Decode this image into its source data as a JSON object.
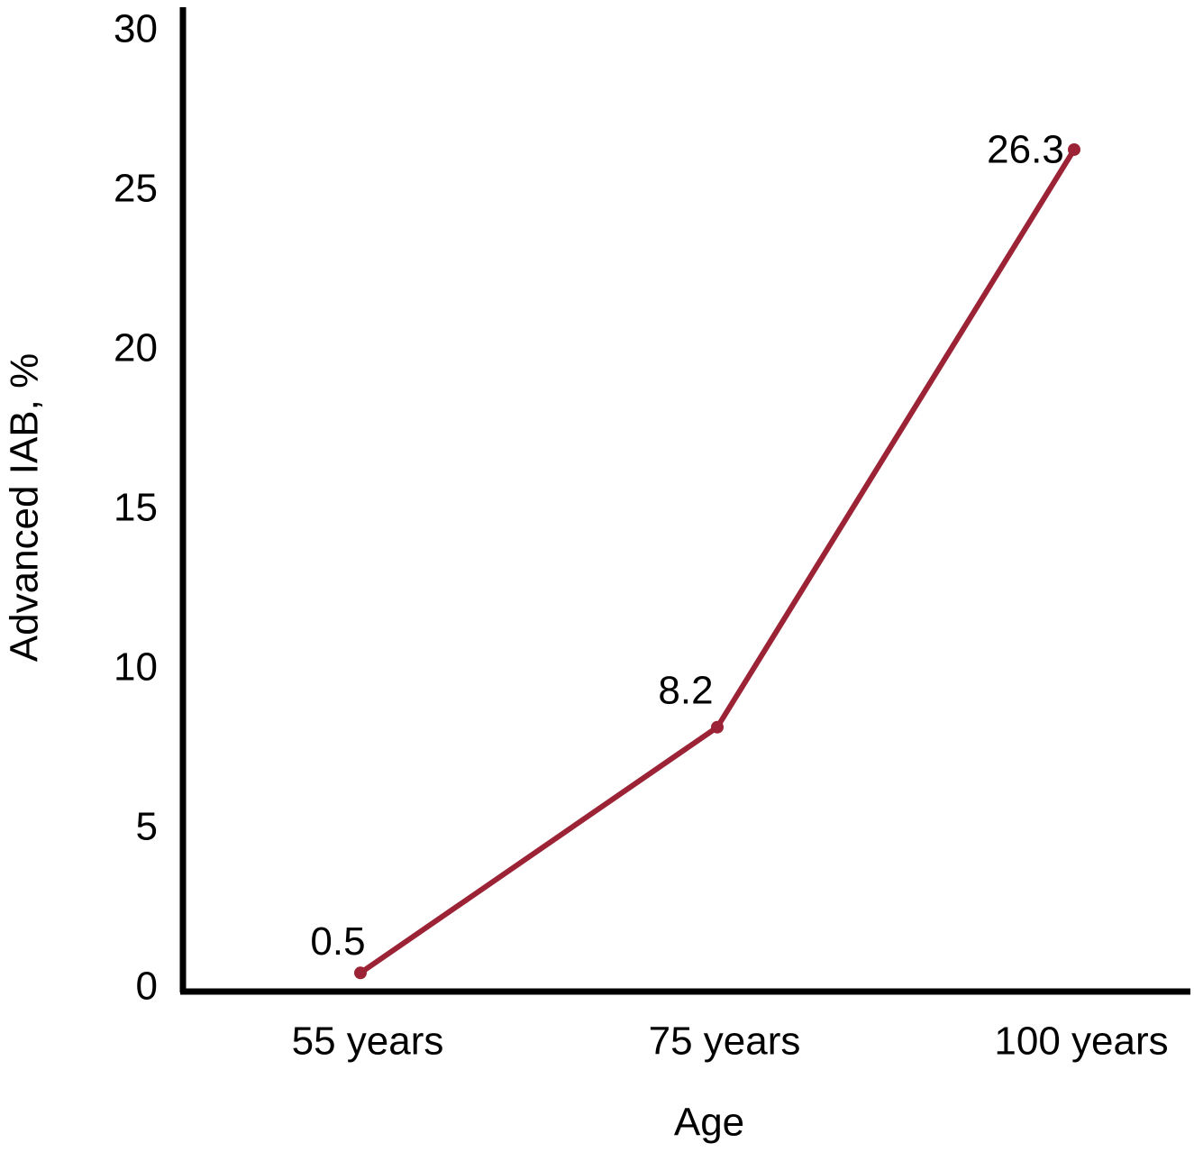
{
  "chart_data": {
    "type": "line",
    "x_label": "Age",
    "y_label": "Advanced IAB, %",
    "categories": [
      "55 years",
      "75 years",
      "100 years"
    ],
    "values": [
      0.5,
      8.2,
      26.3
    ],
    "color": "#9b2335",
    "ylim": [
      0,
      30
    ],
    "yticks": [
      0,
      5,
      10,
      15,
      20,
      25,
      30
    ],
    "grid": false
  }
}
